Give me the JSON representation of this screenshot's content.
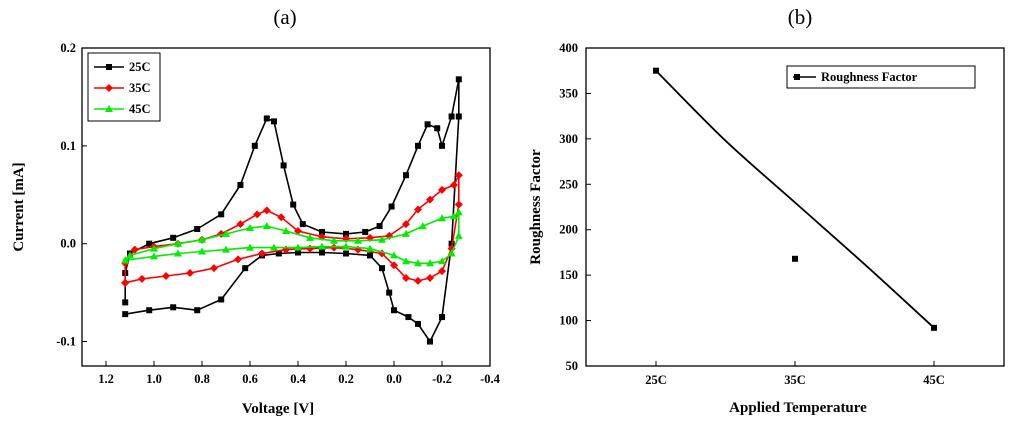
{
  "panels": [
    {
      "label": "(a)"
    },
    {
      "label": "(b)"
    }
  ],
  "chart_data": [
    {
      "type": "line",
      "title": "",
      "xlabel": "Voltage [V]",
      "ylabel": "Current [mA]",
      "xlim": [
        1.3,
        -0.4
      ],
      "ylim": [
        -0.125,
        0.2
      ],
      "x_ticks": [
        1.2,
        1.0,
        0.8,
        0.6,
        0.4,
        0.2,
        0.0,
        -0.2,
        -0.4
      ],
      "x_tick_labels": [
        "1.2",
        "1.0",
        "0.8",
        "0.6",
        "0.4",
        "0.2",
        "0.0",
        "-0.2",
        "-0.4"
      ],
      "y_ticks": [
        -0.1,
        0.0,
        0.1,
        0.2
      ],
      "y_tick_labels": [
        "-0.1",
        "0.0",
        "0.1",
        "0.2"
      ],
      "grid": false,
      "legend_position": "top-left",
      "series": [
        {
          "name": "25C",
          "color": "#000000",
          "marker": "square",
          "points": [
            [
              1.12,
              -0.06
            ],
            [
              1.12,
              -0.03
            ],
            [
              1.1,
              -0.01
            ],
            [
              1.02,
              0.0
            ],
            [
              0.92,
              0.006
            ],
            [
              0.82,
              0.015
            ],
            [
              0.72,
              0.03
            ],
            [
              0.64,
              0.06
            ],
            [
              0.58,
              0.1
            ],
            [
              0.53,
              0.128
            ],
            [
              0.5,
              0.125
            ],
            [
              0.46,
              0.08
            ],
            [
              0.42,
              0.04
            ],
            [
              0.38,
              0.02
            ],
            [
              0.3,
              0.012
            ],
            [
              0.2,
              0.01
            ],
            [
              0.12,
              0.012
            ],
            [
              0.06,
              0.018
            ],
            [
              0.01,
              0.038
            ],
            [
              -0.05,
              0.07
            ],
            [
              -0.1,
              0.1
            ],
            [
              -0.14,
              0.122
            ],
            [
              -0.18,
              0.118
            ],
            [
              -0.2,
              0.1
            ],
            [
              -0.24,
              0.13
            ],
            [
              -0.27,
              0.168
            ],
            [
              -0.27,
              0.13
            ],
            [
              -0.24,
              0.0
            ],
            [
              -0.2,
              -0.075
            ],
            [
              -0.15,
              -0.1
            ],
            [
              -0.1,
              -0.082
            ],
            [
              -0.06,
              -0.075
            ],
            [
              0.0,
              -0.068
            ],
            [
              0.02,
              -0.05
            ],
            [
              0.05,
              -0.025
            ],
            [
              0.1,
              -0.012
            ],
            [
              0.2,
              -0.01
            ],
            [
              0.3,
              -0.009
            ],
            [
              0.4,
              -0.009
            ],
            [
              0.48,
              -0.01
            ],
            [
              0.55,
              -0.012
            ],
            [
              0.62,
              -0.025
            ],
            [
              0.72,
              -0.057
            ],
            [
              0.82,
              -0.068
            ],
            [
              0.92,
              -0.065
            ],
            [
              1.02,
              -0.068
            ],
            [
              1.12,
              -0.072
            ]
          ]
        },
        {
          "name": "35C",
          "color": "#ff0000",
          "marker": "diamond",
          "points": [
            [
              1.12,
              -0.04
            ],
            [
              1.12,
              -0.02
            ],
            [
              1.08,
              -0.006
            ],
            [
              1.0,
              -0.003
            ],
            [
              0.9,
              0.0
            ],
            [
              0.8,
              0.004
            ],
            [
              0.72,
              0.01
            ],
            [
              0.64,
              0.02
            ],
            [
              0.57,
              0.03
            ],
            [
              0.53,
              0.034
            ],
            [
              0.47,
              0.027
            ],
            [
              0.4,
              0.013
            ],
            [
              0.3,
              0.007
            ],
            [
              0.2,
              0.005
            ],
            [
              0.1,
              0.006
            ],
            [
              0.02,
              0.008
            ],
            [
              -0.05,
              0.02
            ],
            [
              -0.1,
              0.035
            ],
            [
              -0.15,
              0.045
            ],
            [
              -0.2,
              0.055
            ],
            [
              -0.25,
              0.06
            ],
            [
              -0.27,
              0.07
            ],
            [
              -0.27,
              0.04
            ],
            [
              -0.24,
              -0.005
            ],
            [
              -0.2,
              -0.028
            ],
            [
              -0.15,
              -0.035
            ],
            [
              -0.1,
              -0.038
            ],
            [
              -0.05,
              -0.035
            ],
            [
              0.0,
              -0.022
            ],
            [
              0.05,
              -0.01
            ],
            [
              0.15,
              -0.006
            ],
            [
              0.25,
              -0.004
            ],
            [
              0.35,
              -0.005
            ],
            [
              0.45,
              -0.006
            ],
            [
              0.55,
              -0.01
            ],
            [
              0.65,
              -0.016
            ],
            [
              0.75,
              -0.025
            ],
            [
              0.85,
              -0.03
            ],
            [
              0.95,
              -0.033
            ],
            [
              1.05,
              -0.036
            ],
            [
              1.12,
              -0.04
            ]
          ]
        },
        {
          "name": "45C",
          "color": "#00ee00",
          "marker": "triangle",
          "points": [
            [
              1.12,
              -0.017
            ],
            [
              1.1,
              -0.012
            ],
            [
              1.0,
              -0.005
            ],
            [
              0.9,
              0.0
            ],
            [
              0.8,
              0.004
            ],
            [
              0.7,
              0.01
            ],
            [
              0.6,
              0.016
            ],
            [
              0.53,
              0.018
            ],
            [
              0.45,
              0.013
            ],
            [
              0.35,
              0.006
            ],
            [
              0.25,
              0.003
            ],
            [
              0.15,
              0.003
            ],
            [
              0.05,
              0.004
            ],
            [
              -0.05,
              0.01
            ],
            [
              -0.12,
              0.018
            ],
            [
              -0.2,
              0.026
            ],
            [
              -0.25,
              0.028
            ],
            [
              -0.27,
              0.032
            ],
            [
              -0.27,
              0.008
            ],
            [
              -0.24,
              -0.01
            ],
            [
              -0.2,
              -0.018
            ],
            [
              -0.15,
              -0.02
            ],
            [
              -0.1,
              -0.02
            ],
            [
              -0.05,
              -0.018
            ],
            [
              0.0,
              -0.012
            ],
            [
              0.1,
              -0.005
            ],
            [
              0.2,
              -0.003
            ],
            [
              0.3,
              -0.003
            ],
            [
              0.4,
              -0.004
            ],
            [
              0.5,
              -0.004
            ],
            [
              0.6,
              -0.004
            ],
            [
              0.7,
              -0.006
            ],
            [
              0.8,
              -0.008
            ],
            [
              0.9,
              -0.01
            ],
            [
              1.0,
              -0.013
            ],
            [
              1.12,
              -0.017
            ]
          ]
        }
      ]
    },
    {
      "type": "scatter",
      "title": "",
      "xlabel": "Applied Temperature",
      "ylabel": "Roughness Factor",
      "categories": [
        "25C",
        "35C",
        "45C"
      ],
      "ylim": [
        50,
        400
      ],
      "y_ticks": [
        50,
        100,
        150,
        200,
        250,
        300,
        350,
        400
      ],
      "y_tick_labels": [
        "50",
        "100",
        "150",
        "200",
        "250",
        "300",
        "350",
        "400"
      ],
      "grid": false,
      "legend_position": "top-right",
      "series": [
        {
          "name": "Roughness Factor",
          "color": "#000000",
          "marker": "square",
          "values": [
            375,
            168,
            92
          ]
        }
      ],
      "fit_curve": {
        "color": "#000000",
        "points": [
          [
            0,
            375
          ],
          [
            0.5,
            298
          ],
          [
            1,
            230
          ],
          [
            1.5,
            162
          ],
          [
            2,
            92
          ]
        ]
      }
    }
  ]
}
